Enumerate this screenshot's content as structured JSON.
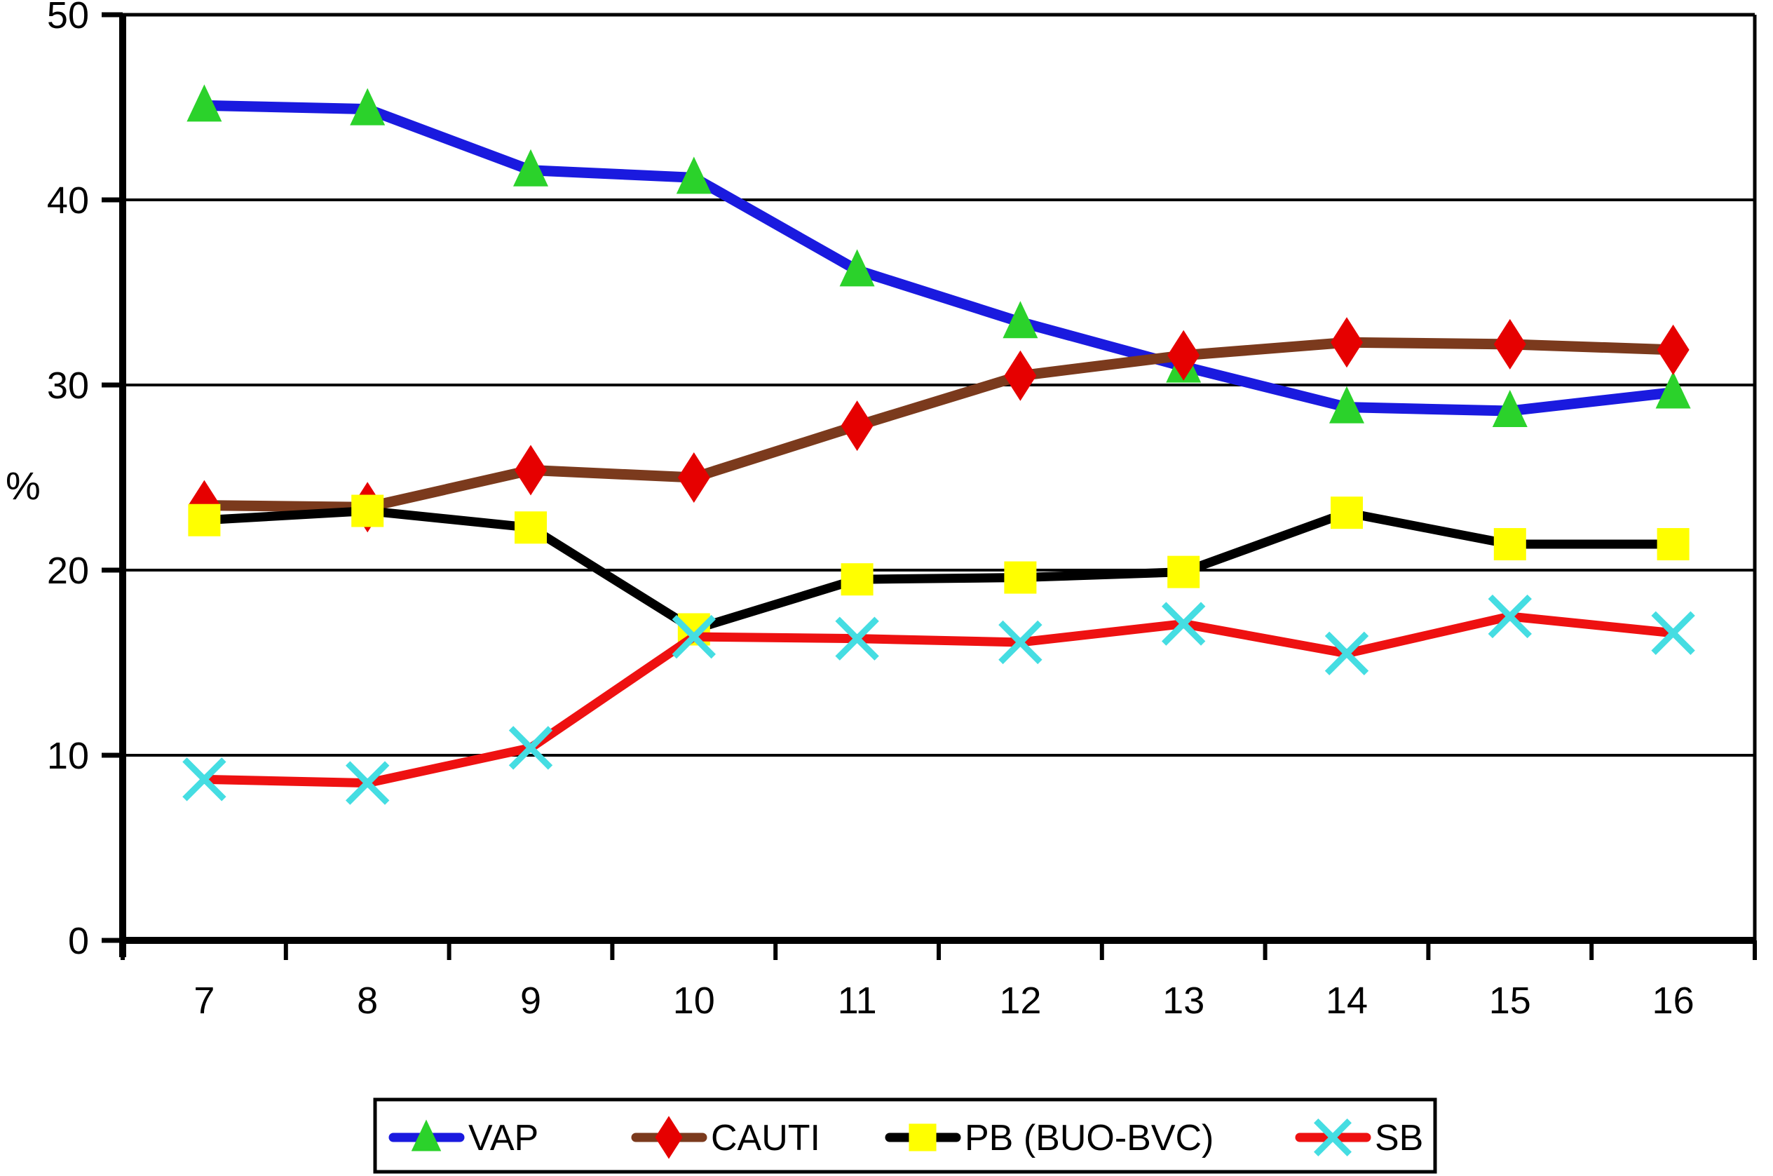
{
  "chart_data": {
    "type": "line",
    "title": "",
    "xlabel": "",
    "ylabel": "%",
    "x": [
      7,
      8,
      9,
      10,
      11,
      12,
      13,
      14,
      15,
      16
    ],
    "x_tick_labels": [
      "7",
      "8",
      "9",
      "10",
      "11",
      "12",
      "13",
      "14",
      "15",
      "16"
    ],
    "ylim": [
      0,
      50
    ],
    "yticks": [
      0,
      10,
      20,
      30,
      40,
      50
    ],
    "y_tick_labels": [
      "0",
      "10",
      "20",
      "30",
      "40",
      "50"
    ],
    "grid": true,
    "plot_border": true,
    "legend_position": "bottom",
    "axis_color": "#000000",
    "grid_color": "#000000",
    "background_color": "#ffffff",
    "series": [
      {
        "name": "VAP",
        "marker": "triangle",
        "line_color": "#1a1adf",
        "marker_color": "#2bd22b",
        "values": [
          45.1,
          44.9,
          41.6,
          41.2,
          36.2,
          33.4,
          31.0,
          28.8,
          28.6,
          29.6
        ]
      },
      {
        "name": "CAUTI",
        "marker": "diamond",
        "line_color": "#7b3a1d",
        "marker_color": "#e60000",
        "values": [
          23.5,
          23.4,
          25.4,
          25.0,
          27.8,
          30.5,
          31.6,
          32.3,
          32.2,
          31.9
        ]
      },
      {
        "name": "PB (BUO-BVC)",
        "marker": "square",
        "line_color": "#000000",
        "marker_color": "#ffff00",
        "values": [
          22.7,
          23.2,
          22.3,
          16.8,
          19.5,
          19.6,
          19.9,
          23.1,
          21.4,
          21.4
        ]
      },
      {
        "name": "SB",
        "marker": "x",
        "line_color": "#ee1111",
        "marker_color": "#45dde2",
        "values": [
          8.7,
          8.5,
          10.4,
          16.4,
          16.3,
          16.1,
          17.1,
          15.5,
          17.5,
          16.6
        ]
      }
    ]
  }
}
